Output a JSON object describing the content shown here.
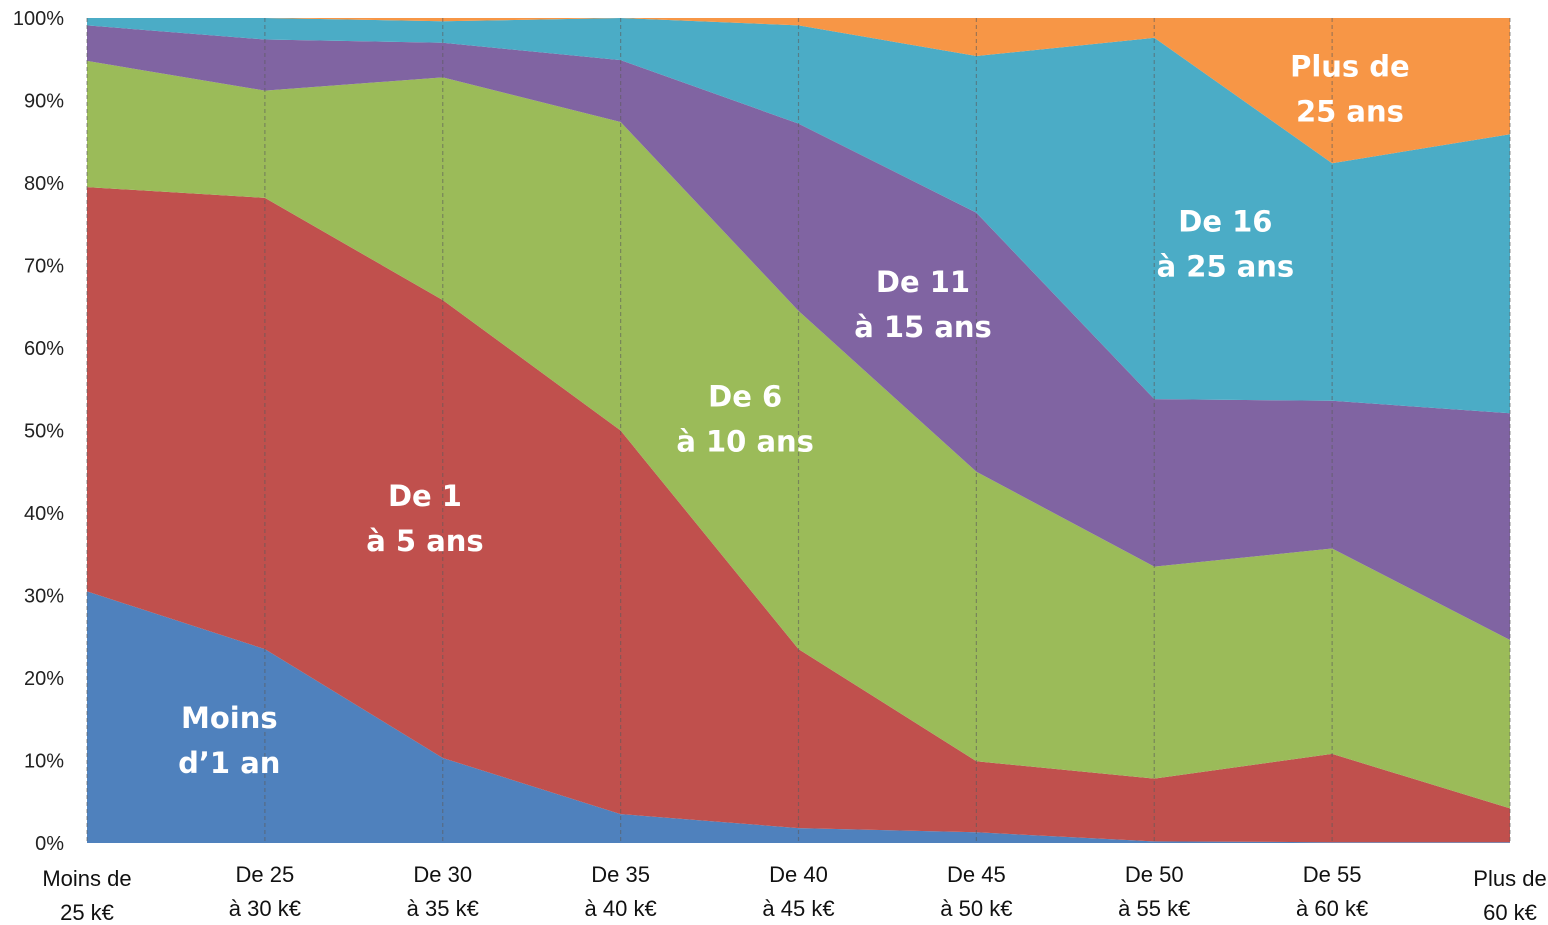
{
  "chart_data": {
    "type": "area",
    "stacked": true,
    "percent": true,
    "categories": [
      [
        "Moins de",
        "25 k€"
      ],
      [
        "De 25",
        "à 30 k€"
      ],
      [
        "De 30",
        "à 35 k€"
      ],
      [
        "De 35",
        "à 40 k€"
      ],
      [
        "De 40",
        "à 45 k€"
      ],
      [
        "De 45",
        "à 50 k€"
      ],
      [
        "De 50",
        "à 55 k€"
      ],
      [
        "De 55",
        "à 60 k€"
      ],
      [
        "Plus de",
        "60 k€"
      ]
    ],
    "y_ticks": [
      "0%",
      "10%",
      "20%",
      "30%",
      "40%",
      "50%",
      "60%",
      "70%",
      "80%",
      "90%",
      "100%"
    ],
    "ylim": [
      0,
      100
    ],
    "series": [
      {
        "name_lines": [
          "Moins",
          "d’1 an"
        ],
        "color": "#4F81BD",
        "values": [
          30.5,
          23.5,
          10.3,
          3.5,
          1.8,
          1.3,
          0.2,
          0.1,
          0.1
        ]
      },
      {
        "name_lines": [
          "De 1",
          "à 5 ans"
        ],
        "color": "#C0504D",
        "values": [
          49.0,
          54.7,
          55.5,
          46.5,
          21.7,
          8.6,
          7.6,
          10.7,
          4.1
        ]
      },
      {
        "name_lines": [
          "De 6",
          "à 10 ans"
        ],
        "color": "#9BBB59",
        "values": [
          15.3,
          13.0,
          27.0,
          37.4,
          41.0,
          35.1,
          25.7,
          24.9,
          20.4
        ]
      },
      {
        "name_lines": [
          "De 11",
          "à 15 ans"
        ],
        "color": "#8064A2",
        "values": [
          4.3,
          6.2,
          4.2,
          7.5,
          22.7,
          31.4,
          20.3,
          17.9,
          27.5
        ]
      },
      {
        "name_lines": [
          "De 16",
          "à 25 ans"
        ],
        "color": "#4BACC6",
        "values": [
          0.9,
          2.6,
          2.6,
          5.1,
          11.9,
          19.0,
          43.8,
          28.8,
          33.8
        ]
      },
      {
        "name_lines": [
          "Plus de",
          "25 ans"
        ],
        "color": "#F79646",
        "values": [
          0.0,
          0.0,
          0.4,
          0.0,
          0.9,
          4.6,
          2.4,
          17.6,
          14.1
        ]
      }
    ]
  }
}
